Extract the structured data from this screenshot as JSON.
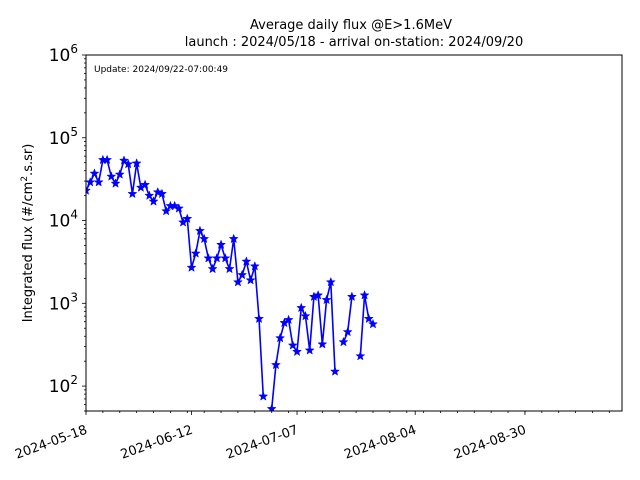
{
  "chart_data": {
    "type": "line",
    "title": "Average daily flux @E>1.6MeV",
    "subtitle": "launch : 2024/05/18 - arrival on-station: 2024/09/20",
    "annotation": "Update: 2024/09/22-07:00:49",
    "ylabel": "Integrated flux (#/cm",
    "ylabel_sup": "2",
    "ylabel_tail": ".s.sr)",
    "xlabel": "",
    "yscale": "log",
    "ylim": [
      50,
      1000000
    ],
    "xlim": [
      "2024-05-18",
      "2024-09-22"
    ],
    "grid": false,
    "legend": "none",
    "line_color": "#0000ff",
    "marker": "star",
    "x_ticks": [
      "2024-05-18",
      "2024-06-12",
      "2024-07-07",
      "2024-08-04",
      "2024-08-30"
    ],
    "y_ticks": [
      {
        "value": 100,
        "base": "10",
        "exp": "2"
      },
      {
        "value": 1000,
        "base": "10",
        "exp": "3"
      },
      {
        "value": 10000,
        "base": "10",
        "exp": "4"
      },
      {
        "value": 100000,
        "base": "10",
        "exp": "5"
      },
      {
        "value": 1000000,
        "base": "10",
        "exp": "6"
      }
    ],
    "series": [
      {
        "x": [
          "2024-05-18",
          "2024-05-19",
          "2024-05-20",
          "2024-05-21",
          "2024-05-22",
          "2024-05-23",
          "2024-05-24",
          "2024-05-25",
          "2024-05-26",
          "2024-05-27",
          "2024-05-28",
          "2024-05-29",
          "2024-05-30",
          "2024-05-31",
          "2024-06-01",
          "2024-06-02",
          "2024-06-03",
          "2024-06-04",
          "2024-06-05",
          "2024-06-06",
          "2024-06-07",
          "2024-06-08",
          "2024-06-09",
          "2024-06-10",
          "2024-06-11",
          "2024-06-12",
          "2024-06-13",
          "2024-06-14",
          "2024-06-15",
          "2024-06-16",
          "2024-06-17",
          "2024-06-18",
          "2024-06-19",
          "2024-06-20",
          "2024-06-21",
          "2024-06-22",
          "2024-06-23",
          "2024-06-24",
          "2024-06-25",
          "2024-06-26",
          "2024-06-27",
          "2024-06-28",
          "2024-06-29",
          "2024-06-30",
          "2024-07-01",
          "2024-07-02",
          "2024-07-03",
          "2024-07-04",
          "2024-07-05",
          "2024-07-06",
          "2024-07-07",
          "2024-07-08",
          "2024-07-09",
          "2024-07-10",
          "2024-07-11",
          "2024-07-12",
          "2024-07-13",
          "2024-07-14",
          "2024-07-15",
          "2024-07-16",
          "2024-07-17",
          "2024-07-18",
          "2024-07-19",
          "2024-07-20",
          "2024-07-21",
          "2024-07-22",
          "2024-07-23",
          "2024-07-24",
          "2024-07-25",
          "2024-07-26",
          "2024-07-27",
          "2024-07-28",
          "2024-07-29",
          "2024-07-30",
          "2024-07-31",
          "2024-08-01",
          "2024-08-02",
          "2024-08-03",
          "2024-08-04",
          "2024-08-05",
          "2024-08-06",
          "2024-08-07",
          "2024-08-08",
          "2024-08-09",
          "2024-08-10",
          "2024-08-11",
          "2024-08-12",
          "2024-08-13",
          "2024-08-14",
          "2024-08-15",
          "2024-08-16",
          "2024-08-17",
          "2024-08-18",
          "2024-08-19",
          "2024-08-20",
          "2024-08-21",
          "2024-08-22",
          "2024-08-23",
          "2024-08-24",
          "2024-08-25",
          "2024-08-26",
          "2024-08-27",
          "2024-08-28",
          "2024-08-29",
          "2024-08-30",
          "2024-08-31",
          "2024-09-01",
          "2024-09-02",
          "2024-09-03",
          "2024-09-04",
          "2024-09-05",
          "2024-09-06",
          "2024-09-07",
          "2024-09-08",
          "2024-09-09",
          "2024-09-10",
          "2024-09-11",
          "2024-09-12",
          "2024-09-13",
          "2024-09-14",
          "2024-09-15",
          "2024-09-16",
          "2024-09-17",
          "2024-09-18",
          "2024-09-19",
          "2024-09-20"
        ],
        "y": [
          23000,
          29000,
          37000,
          29000,
          54000,
          54000,
          34000,
          28000,
          36000,
          53000,
          48000,
          21000,
          49000,
          25000,
          27000,
          20000,
          17000,
          22000,
          21000,
          13000,
          15000,
          15000,
          14000,
          9500,
          10500,
          2700,
          4000,
          7500,
          6000,
          3500,
          2600,
          3500,
          5100,
          3500,
          2600,
          6000,
          1800,
          2200,
          3200,
          1900,
          2800,
          650,
          75,
          null,
          53,
          180,
          380,
          580,
          630,
          310,
          260,
          880,
          700,
          270,
          1200,
          1250,
          320,
          1100,
          1800,
          150,
          null,
          340,
          450,
          1200,
          null,
          230,
          1250,
          650,
          560,
          null,
          null,
          null,
          null,
          null,
          null,
          null,
          null,
          null,
          null,
          null,
          null,
          null,
          null,
          null,
          null,
          null,
          null,
          null,
          null,
          null,
          null,
          null,
          null,
          null,
          null,
          null,
          null,
          null,
          null,
          null,
          null,
          null,
          null,
          null,
          null,
          null,
          null,
          null,
          null,
          null,
          null,
          null,
          null,
          null,
          null,
          null,
          null,
          null,
          null,
          null,
          null,
          null,
          null,
          null,
          null,
          null
        ]
      }
    ]
  }
}
